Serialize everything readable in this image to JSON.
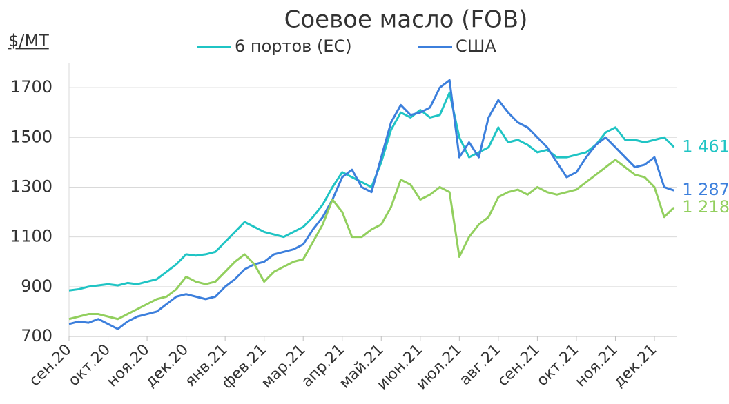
{
  "chart_data": {
    "type": "line",
    "title": "Соевое масло (FOB)",
    "y_label": "$/МТ",
    "categories": [
      "сен.20",
      null,
      null,
      null,
      "окт.20",
      null,
      null,
      null,
      "ноя.20",
      null,
      null,
      null,
      "дек.20",
      null,
      null,
      null,
      "янв.21",
      null,
      null,
      null,
      "фев.21",
      null,
      null,
      null,
      "мар.21",
      null,
      null,
      null,
      "апр.21",
      null,
      null,
      null,
      "май.21",
      null,
      null,
      null,
      "июн.21",
      null,
      null,
      null,
      "июл.21",
      null,
      null,
      null,
      "авг.21",
      null,
      null,
      null,
      "сен.21",
      null,
      null,
      null,
      "окт.21",
      null,
      null,
      null,
      "ноя.21",
      null,
      null,
      null,
      "дек.21",
      null,
      null
    ],
    "ylim": [
      700,
      1800
    ],
    "yticks": [
      700,
      900,
      1100,
      1300,
      1500,
      1700
    ],
    "grid": true,
    "series": [
      {
        "name": "6 портов (ЕС)",
        "color": "#1fc4c4",
        "values": [
          885,
          890,
          900,
          905,
          910,
          905,
          915,
          910,
          920,
          930,
          960,
          990,
          1030,
          1025,
          1030,
          1040,
          1080,
          1120,
          1160,
          1140,
          1120,
          1110,
          1100,
          1120,
          1140,
          1180,
          1230,
          1300,
          1360,
          1340,
          1320,
          1300,
          1400,
          1530,
          1600,
          1580,
          1610,
          1580,
          1590,
          1680,
          1500,
          1420,
          1440,
          1460,
          1540,
          1480,
          1490,
          1470,
          1440,
          1450,
          1420,
          1420,
          1430,
          1440,
          1470,
          1520,
          1540,
          1490,
          1490,
          1480,
          1490,
          1500,
          1461
        ],
        "value_labels": [
          null,
          null,
          null,
          null,
          null,
          null,
          null,
          null,
          null,
          null,
          null,
          null,
          null,
          null,
          null,
          null,
          null,
          null,
          null,
          null,
          null,
          null,
          null,
          null,
          null,
          null,
          null,
          null,
          null,
          null,
          null,
          null,
          null,
          null,
          null,
          null,
          null,
          null,
          null,
          null,
          null,
          null,
          null,
          null,
          null,
          null,
          null,
          null,
          null,
          null,
          null,
          null,
          null,
          null,
          null,
          null,
          null,
          null,
          null,
          null,
          null,
          null,
          "1 461"
        ]
      },
      {
        "name": "США",
        "color": "#3c7fdc",
        "values": [
          750,
          760,
          755,
          770,
          750,
          730,
          760,
          780,
          790,
          800,
          830,
          860,
          870,
          860,
          850,
          860,
          900,
          930,
          970,
          990,
          1000,
          1030,
          1040,
          1050,
          1070,
          1130,
          1180,
          1250,
          1340,
          1370,
          1300,
          1280,
          1420,
          1560,
          1630,
          1590,
          1600,
          1620,
          1700,
          1730,
          1420,
          1480,
          1420,
          1580,
          1650,
          1600,
          1560,
          1540,
          1500,
          1460,
          1400,
          1340,
          1360,
          1420,
          1470,
          1500,
          1460,
          1420,
          1380,
          1390,
          1420,
          1300,
          1287
        ],
        "value_labels": [
          null,
          null,
          null,
          null,
          null,
          null,
          null,
          null,
          null,
          null,
          null,
          null,
          null,
          null,
          null,
          null,
          null,
          null,
          null,
          null,
          null,
          null,
          null,
          null,
          null,
          null,
          null,
          null,
          null,
          null,
          null,
          null,
          null,
          null,
          null,
          null,
          null,
          null,
          null,
          null,
          null,
          null,
          null,
          null,
          null,
          null,
          null,
          null,
          null,
          null,
          null,
          null,
          null,
          null,
          null,
          null,
          null,
          null,
          null,
          null,
          null,
          null,
          "1 287"
        ]
      },
      {
        "color": "#92cf5e",
        "values": [
          770,
          780,
          790,
          790,
          780,
          770,
          790,
          810,
          830,
          850,
          860,
          890,
          940,
          920,
          910,
          920,
          960,
          1000,
          1030,
          990,
          920,
          960,
          980,
          1000,
          1010,
          1080,
          1150,
          1250,
          1200,
          1100,
          1100,
          1130,
          1150,
          1220,
          1330,
          1310,
          1250,
          1270,
          1300,
          1280,
          1020,
          1100,
          1150,
          1180,
          1260,
          1280,
          1290,
          1270,
          1300,
          1280,
          1270,
          1280,
          1290,
          1320,
          1350,
          1380,
          1410,
          1380,
          1350,
          1340,
          1300,
          1180,
          1218
        ],
        "value_labels": [
          null,
          null,
          null,
          null,
          null,
          null,
          null,
          null,
          null,
          null,
          null,
          null,
          null,
          null,
          null,
          null,
          null,
          null,
          null,
          null,
          null,
          null,
          null,
          null,
          null,
          null,
          null,
          null,
          null,
          null,
          null,
          null,
          null,
          null,
          null,
          null,
          null,
          null,
          null,
          null,
          null,
          null,
          null,
          null,
          null,
          null,
          null,
          null,
          null,
          null,
          null,
          null,
          null,
          null,
          null,
          null,
          null,
          null,
          null,
          null,
          null,
          null,
          "1 218"
        ]
      }
    ]
  }
}
